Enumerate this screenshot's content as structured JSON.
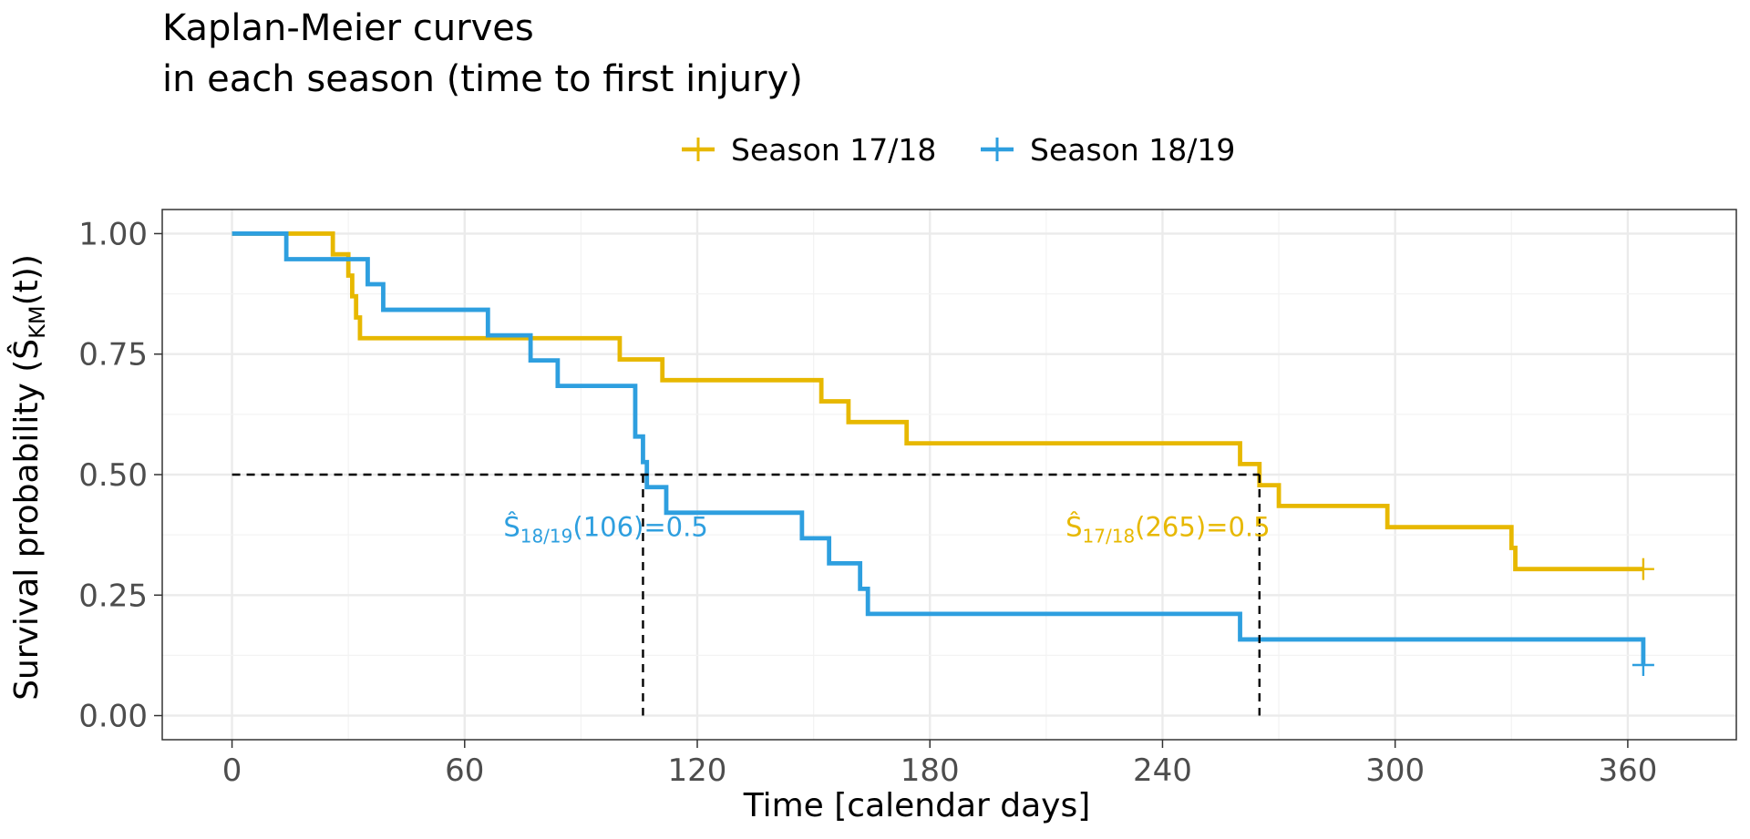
{
  "chart_data": {
    "type": "line",
    "step": true,
    "title": [
      "Kaplan-Meier curves",
      "in each season (time to first injury)"
    ],
    "xlabel": "Time [calendar days]",
    "ylabel_parts": {
      "text": "Survival probability  (",
      "hat": "Ŝ",
      "sub": "KM",
      "tail": "(t))"
    },
    "xlim": [
      -18,
      388
    ],
    "ylim": [
      -0.05,
      1.05
    ],
    "xticks": [
      0,
      60,
      120,
      180,
      240,
      300,
      360
    ],
    "xtick_labels": [
      "0",
      "60",
      "120",
      "180",
      "240",
      "300",
      "360"
    ],
    "yticks": [
      0,
      0.25,
      0.5,
      0.75,
      1
    ],
    "ytick_labels": [
      "0.00",
      "0.25",
      "0.50",
      "0.75",
      "1.00"
    ],
    "grid": true,
    "legend_position": "top",
    "median_line": 0.5,
    "series": [
      {
        "name": "Season 17/18",
        "color": "#E7B800",
        "x": [
          0,
          26,
          30,
          31,
          32,
          33,
          100,
          111,
          152,
          159,
          174,
          260,
          265,
          270,
          298,
          330,
          331,
          364
        ],
        "y": [
          1,
          0.957,
          0.913,
          0.87,
          0.826,
          0.783,
          0.739,
          0.696,
          0.652,
          0.609,
          0.565,
          0.522,
          0.478,
          0.435,
          0.391,
          0.348,
          0.304,
          0.304
        ],
        "censored": [
          [
            364,
            0.304
          ]
        ],
        "median": 265,
        "annotation": {
          "hat": "Ŝ",
          "sub": "17/18",
          "text": "(265)=0.5",
          "x": 215,
          "y": 0.395
        }
      },
      {
        "name": "Season 18/19",
        "color": "#2E9FDF",
        "x": [
          0,
          14,
          35,
          39,
          66,
          77,
          84,
          104,
          106,
          107,
          112,
          147,
          154,
          162,
          164,
          260,
          364
        ],
        "y": [
          1,
          0.947,
          0.895,
          0.842,
          0.789,
          0.737,
          0.684,
          0.579,
          0.526,
          0.474,
          0.421,
          0.368,
          0.316,
          0.263,
          0.211,
          0.158,
          0.105
        ],
        "censored": [
          [
            364,
            0.105
          ]
        ],
        "median": 106,
        "annotation": {
          "hat": "Ŝ",
          "sub": "18/19",
          "text": "(106)=0.5",
          "x": 70,
          "y": 0.395
        }
      }
    ]
  }
}
